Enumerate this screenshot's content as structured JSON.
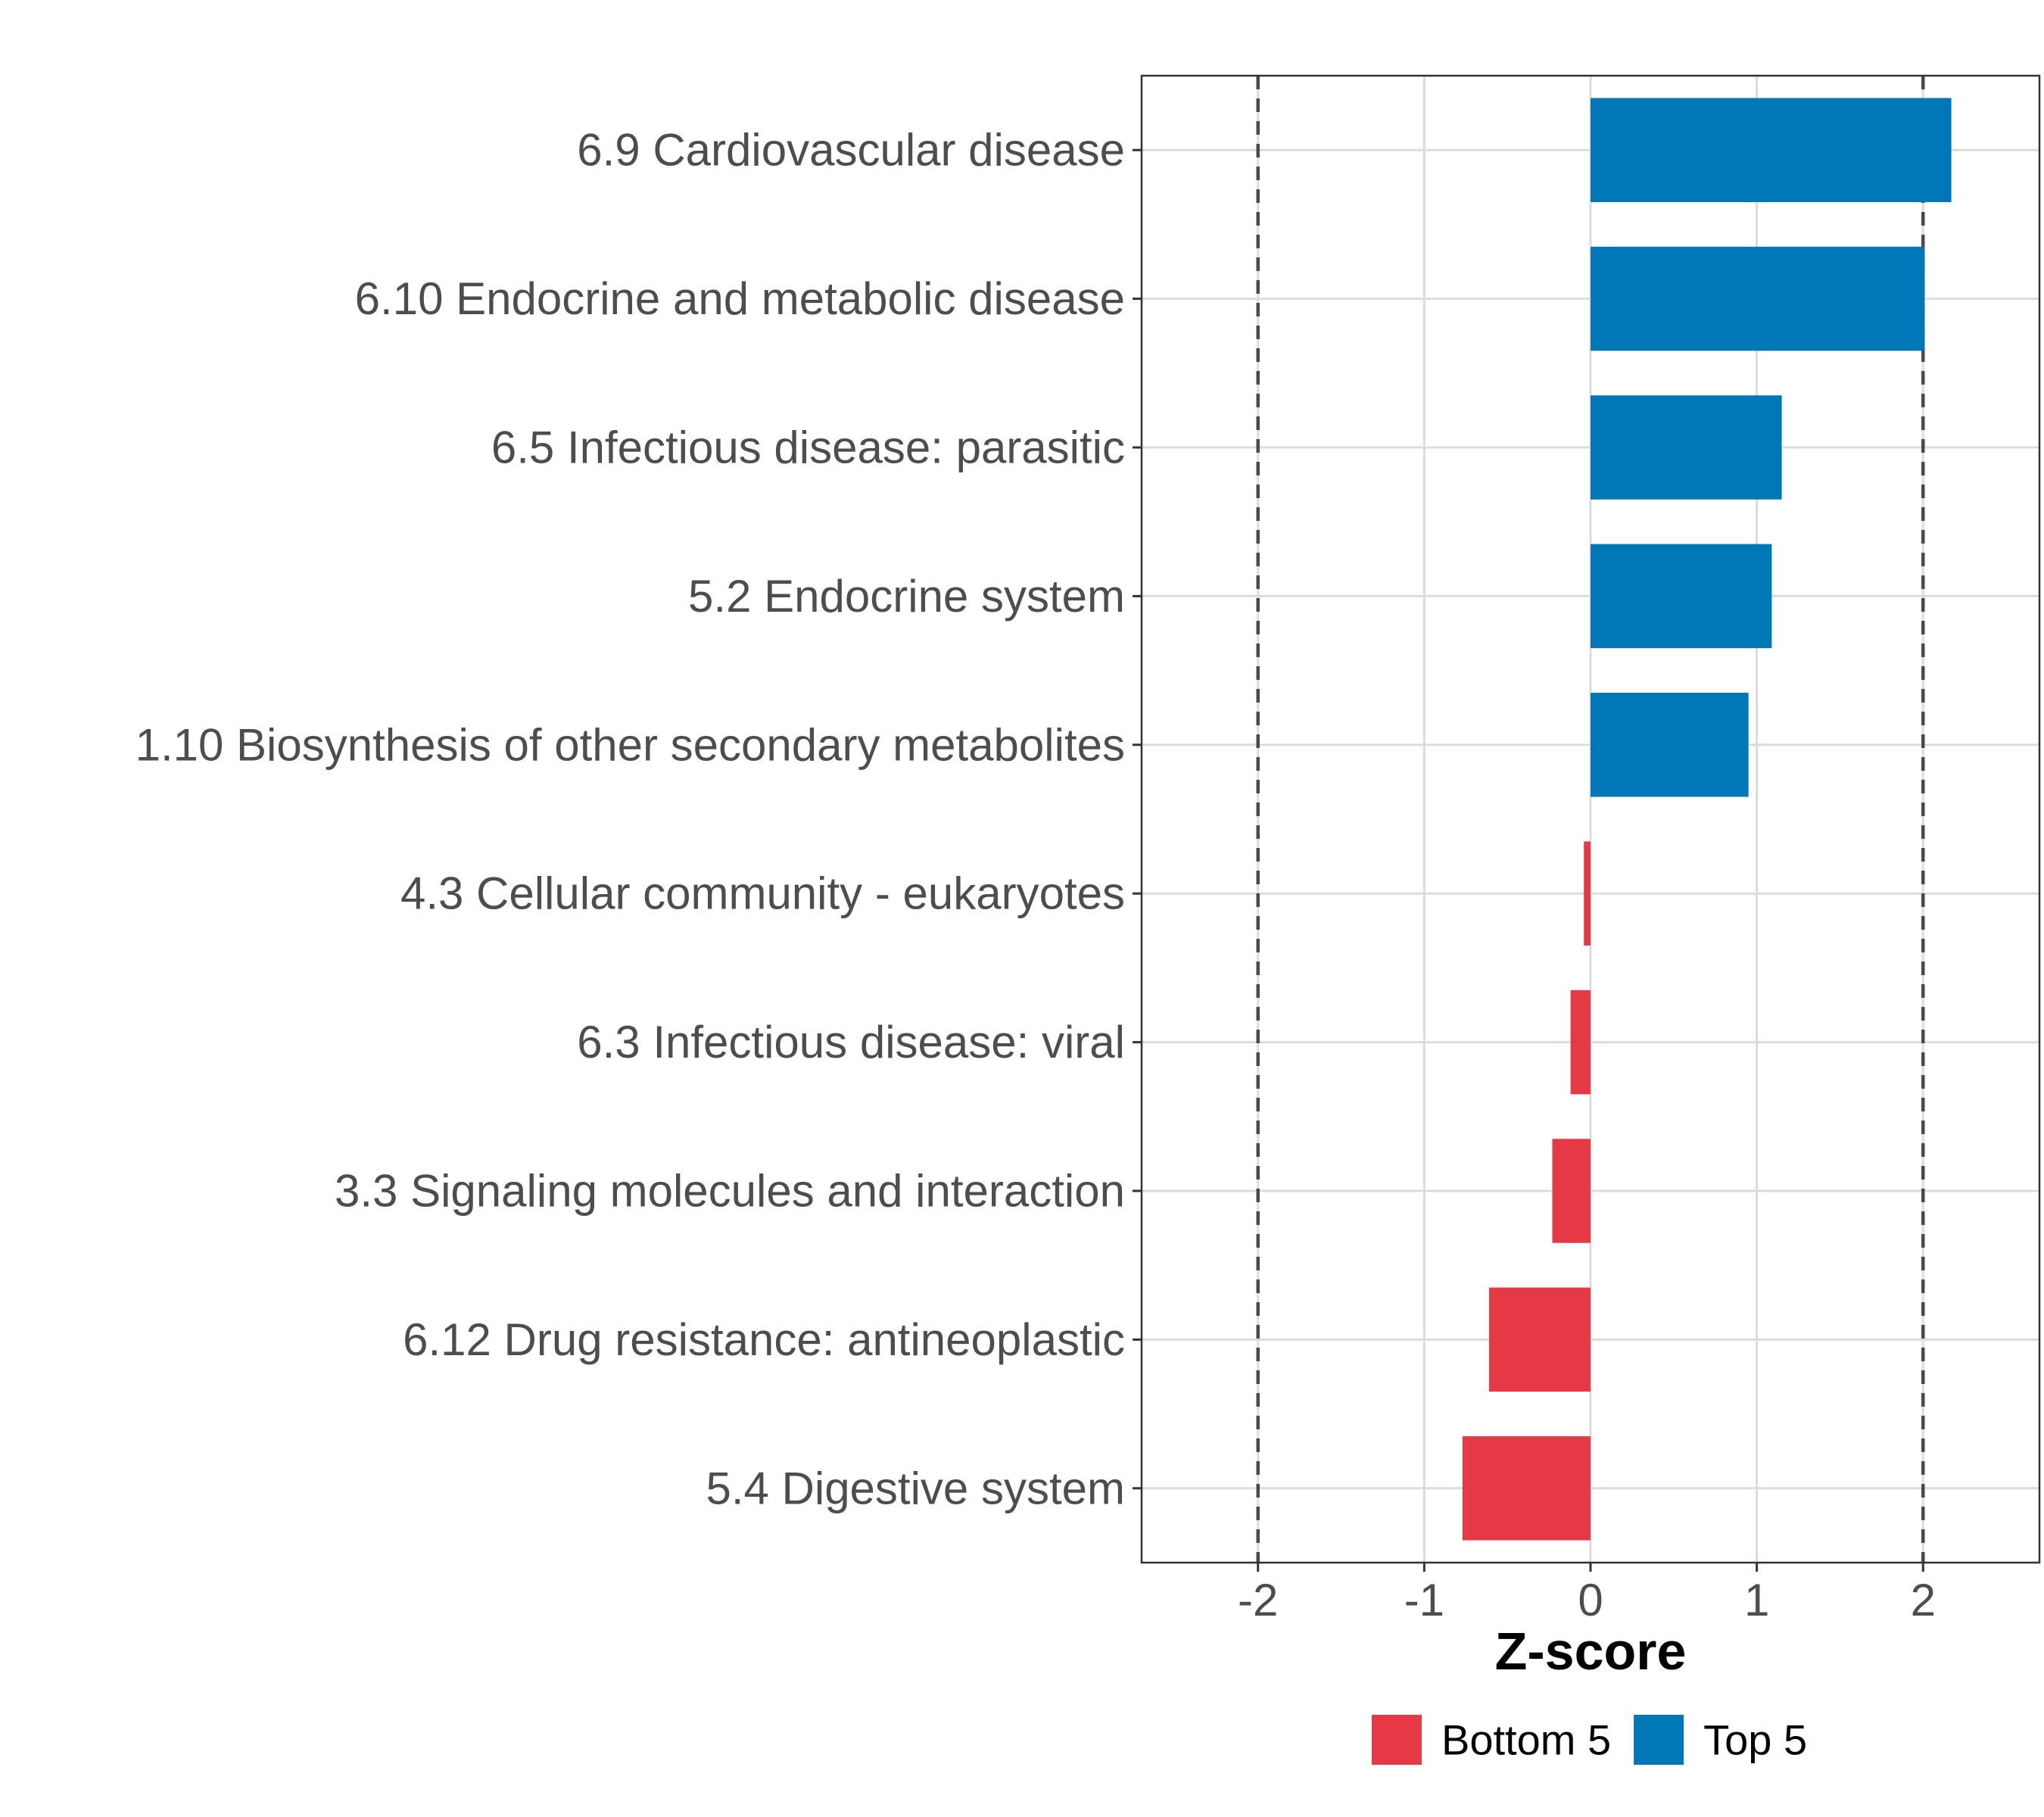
{
  "chart_data": {
    "type": "bar",
    "orientation": "horizontal",
    "xlabel": "Z-score",
    "ylabel": "",
    "xlim": [
      -2.7,
      2.7
    ],
    "x_ticks": [
      -2,
      -1,
      0,
      1,
      2
    ],
    "x_tick_labels": [
      "-2",
      "-1",
      "0",
      "1",
      "2"
    ],
    "reference_lines": [
      -2,
      2
    ],
    "grid": true,
    "categories": [
      "6.9 Cardiovascular disease",
      "6.10 Endocrine and metabolic disease",
      "6.5 Infectious disease: parasitic",
      "5.2 Endocrine system",
      "1.10 Biosynthesis of other secondary metabolites",
      "4.3 Cellular community - eukaryotes",
      "6.3 Infectious disease: viral",
      "3.3 Signaling molecules and interaction",
      "6.12 Drug resistance: antineoplastic",
      "5.4 Digestive system"
    ],
    "values": [
      2.17,
      2.01,
      1.15,
      1.09,
      0.95,
      -0.04,
      -0.12,
      -0.23,
      -0.61,
      -0.77
    ],
    "groups": [
      "Top 5",
      "Top 5",
      "Top 5",
      "Top 5",
      "Top 5",
      "Bottom 5",
      "Bottom 5",
      "Bottom 5",
      "Bottom 5",
      "Bottom 5"
    ],
    "legend": {
      "position": "bottom",
      "entries": [
        {
          "name": "Bottom 5",
          "color": "#E63946"
        },
        {
          "name": "Top 5",
          "color": "#0077B6"
        }
      ]
    }
  }
}
